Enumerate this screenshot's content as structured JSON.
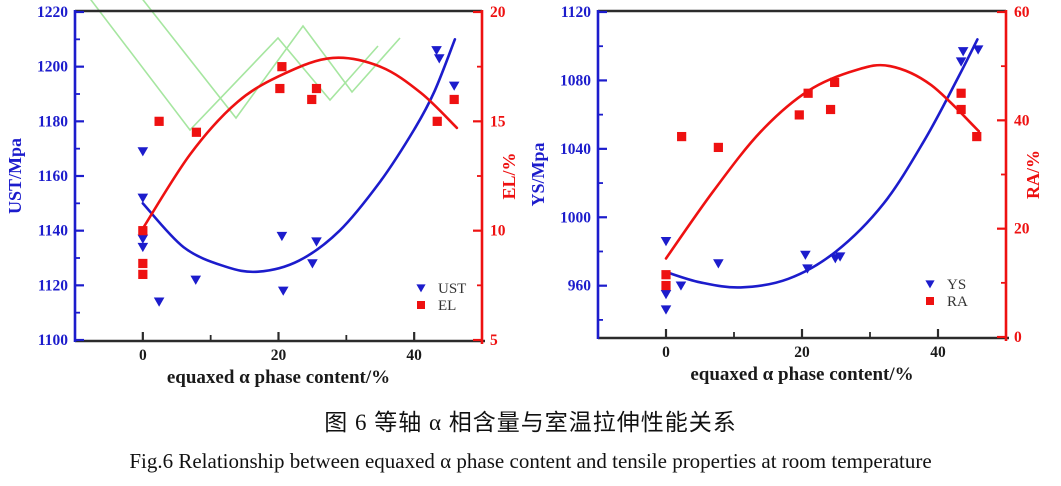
{
  "figure": {
    "caption_zh": "图 6 等轴 α 相含量与室温拉伸性能关系",
    "caption_en": "Fig.6 Relationship between equaxed α phase content and tensile properties at room temperature"
  },
  "colors": {
    "series_blue": "#1c1ccc",
    "series_red": "#ee1111",
    "frame_black": "#2b2b2b",
    "watermark_green": "#a6e6a0",
    "legend_text": "#333333",
    "tick_text_black": "#1a1a1a"
  },
  "chart_data": [
    {
      "type": "scatter",
      "title": "",
      "xlabel": "equaxed α phase content/%",
      "ylabel_left": "UST/Mpa",
      "ylabel_right": "EL/%",
      "xlim": [
        -10,
        50
      ],
      "xticks": [
        0,
        20,
        40
      ],
      "ylim_left": [
        1100,
        1220
      ],
      "yticks_left": [
        1100,
        1120,
        1140,
        1160,
        1180,
        1200,
        1220
      ],
      "ylim_right": [
        5,
        20
      ],
      "yticks_right": [
        5,
        10,
        15,
        20
      ],
      "grid": false,
      "legend_position": "lower right",
      "legend": [
        {
          "label": "UST",
          "marker": "triangle-down",
          "color": "blue"
        },
        {
          "label": "EL",
          "marker": "square",
          "color": "red"
        }
      ],
      "series": [
        {
          "name": "UST",
          "axis": "left",
          "marker": "triangle-down",
          "color": "blue",
          "points": [
            [
              0,
              1169
            ],
            [
              0,
              1152
            ],
            [
              0,
              1137
            ],
            [
              0,
              1134
            ],
            [
              2.4,
              1114
            ],
            [
              7.8,
              1122
            ],
            [
              20.5,
              1138
            ],
            [
              20.7,
              1118
            ],
            [
              25,
              1128
            ],
            [
              25.6,
              1136
            ],
            [
              43.3,
              1206
            ],
            [
              43.7,
              1203
            ],
            [
              45.9,
              1193
            ]
          ],
          "fit_curve": [
            [
              0,
              1150
            ],
            [
              6,
              1134
            ],
            [
              12,
              1127
            ],
            [
              17,
              1125
            ],
            [
              23,
              1129
            ],
            [
              29,
              1140
            ],
            [
              35,
              1158
            ],
            [
              40,
              1177
            ],
            [
              43,
              1191
            ],
            [
              46,
              1210
            ]
          ]
        },
        {
          "name": "EL",
          "axis": "right",
          "marker": "square",
          "color": "red",
          "points": [
            [
              0,
              10
            ],
            [
              0,
              8.5
            ],
            [
              0,
              8
            ],
            [
              2.4,
              15
            ],
            [
              7.9,
              14.5
            ],
            [
              20.2,
              16.5
            ],
            [
              20.5,
              17.5
            ],
            [
              24.9,
              16
            ],
            [
              25.6,
              16.5
            ],
            [
              43.4,
              15
            ],
            [
              45.9,
              16
            ]
          ],
          "fit_curve": [
            [
              0,
              10.1
            ],
            [
              7,
              13.5
            ],
            [
              14,
              15.9
            ],
            [
              21,
              17.2
            ],
            [
              28,
              17.9
            ],
            [
              35,
              17.5
            ],
            [
              41,
              16.3
            ],
            [
              46.3,
              14.7
            ]
          ]
        }
      ],
      "has_watermark": true
    },
    {
      "type": "scatter",
      "title": "",
      "xlabel": "equaxed α phase content/%",
      "ylabel_left": "YS/Mpa",
      "ylabel_right": "RA/%",
      "xlim": [
        -10,
        50
      ],
      "xticks": [
        0,
        20,
        40
      ],
      "ylim_left": [
        930,
        1120
      ],
      "yticks_left": [
        960,
        1000,
        1040,
        1080,
        1120
      ],
      "ylim_right": [
        0,
        60
      ],
      "yticks_right": [
        0,
        20,
        40,
        60
      ],
      "grid": false,
      "legend_position": "lower right",
      "legend": [
        {
          "label": "YS",
          "marker": "triangle-down",
          "color": "blue"
        },
        {
          "label": "RA",
          "marker": "square",
          "color": "red"
        }
      ],
      "series": [
        {
          "name": "YS",
          "axis": "left",
          "marker": "triangle-down",
          "color": "blue",
          "points": [
            [
              0,
              986
            ],
            [
              0,
              955
            ],
            [
              0,
              946
            ],
            [
              2.2,
              960
            ],
            [
              7.7,
              973
            ],
            [
              20.5,
              978
            ],
            [
              20.8,
              970
            ],
            [
              24.9,
              976
            ],
            [
              25.6,
              977
            ],
            [
              43.4,
              1091
            ],
            [
              43.7,
              1097
            ],
            [
              45.9,
              1098
            ]
          ],
          "fit_curve": [
            [
              0,
              968
            ],
            [
              5,
              962
            ],
            [
              11,
              959
            ],
            [
              18,
              964
            ],
            [
              25,
              980
            ],
            [
              32,
              1008
            ],
            [
              38,
              1045
            ],
            [
              43,
              1082
            ],
            [
              45.8,
              1104
            ]
          ]
        },
        {
          "name": "RA",
          "axis": "right",
          "marker": "square",
          "color": "red",
          "points": [
            [
              0,
              11.5
            ],
            [
              0,
              9.5
            ],
            [
              2.3,
              37
            ],
            [
              7.7,
              35
            ],
            [
              19.6,
              41
            ],
            [
              20.9,
              45
            ],
            [
              24.2,
              42
            ],
            [
              24.8,
              47
            ],
            [
              43.4,
              45
            ],
            [
              43.4,
              42
            ],
            [
              45.7,
              37
            ]
          ],
          "fit_curve": [
            [
              0,
              14.5
            ],
            [
              7,
              27
            ],
            [
              14,
              38
            ],
            [
              21,
              45.5
            ],
            [
              28,
              49.3
            ],
            [
              33,
              50
            ],
            [
              39,
              46.5
            ],
            [
              46,
              38
            ]
          ]
        }
      ],
      "has_watermark": false
    }
  ]
}
